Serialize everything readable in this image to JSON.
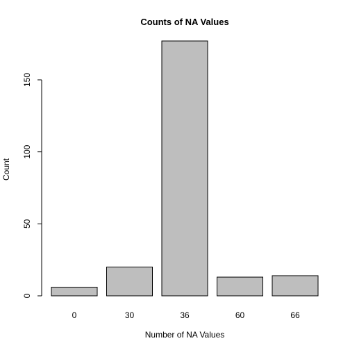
{
  "chart_data": {
    "type": "bar",
    "title": "Counts of NA Values",
    "xlabel": "Number of NA Values",
    "ylabel": "Count",
    "categories": [
      "0",
      "30",
      "36",
      "60",
      "66"
    ],
    "values": [
      6,
      20,
      177,
      13,
      14
    ],
    "ylim": [
      0,
      177
    ],
    "yticks": [
      0,
      50,
      100,
      150
    ],
    "grid": false,
    "legend": "none",
    "colors": {
      "bar_fill": "#bebebe",
      "bar_stroke": "#000000"
    }
  }
}
